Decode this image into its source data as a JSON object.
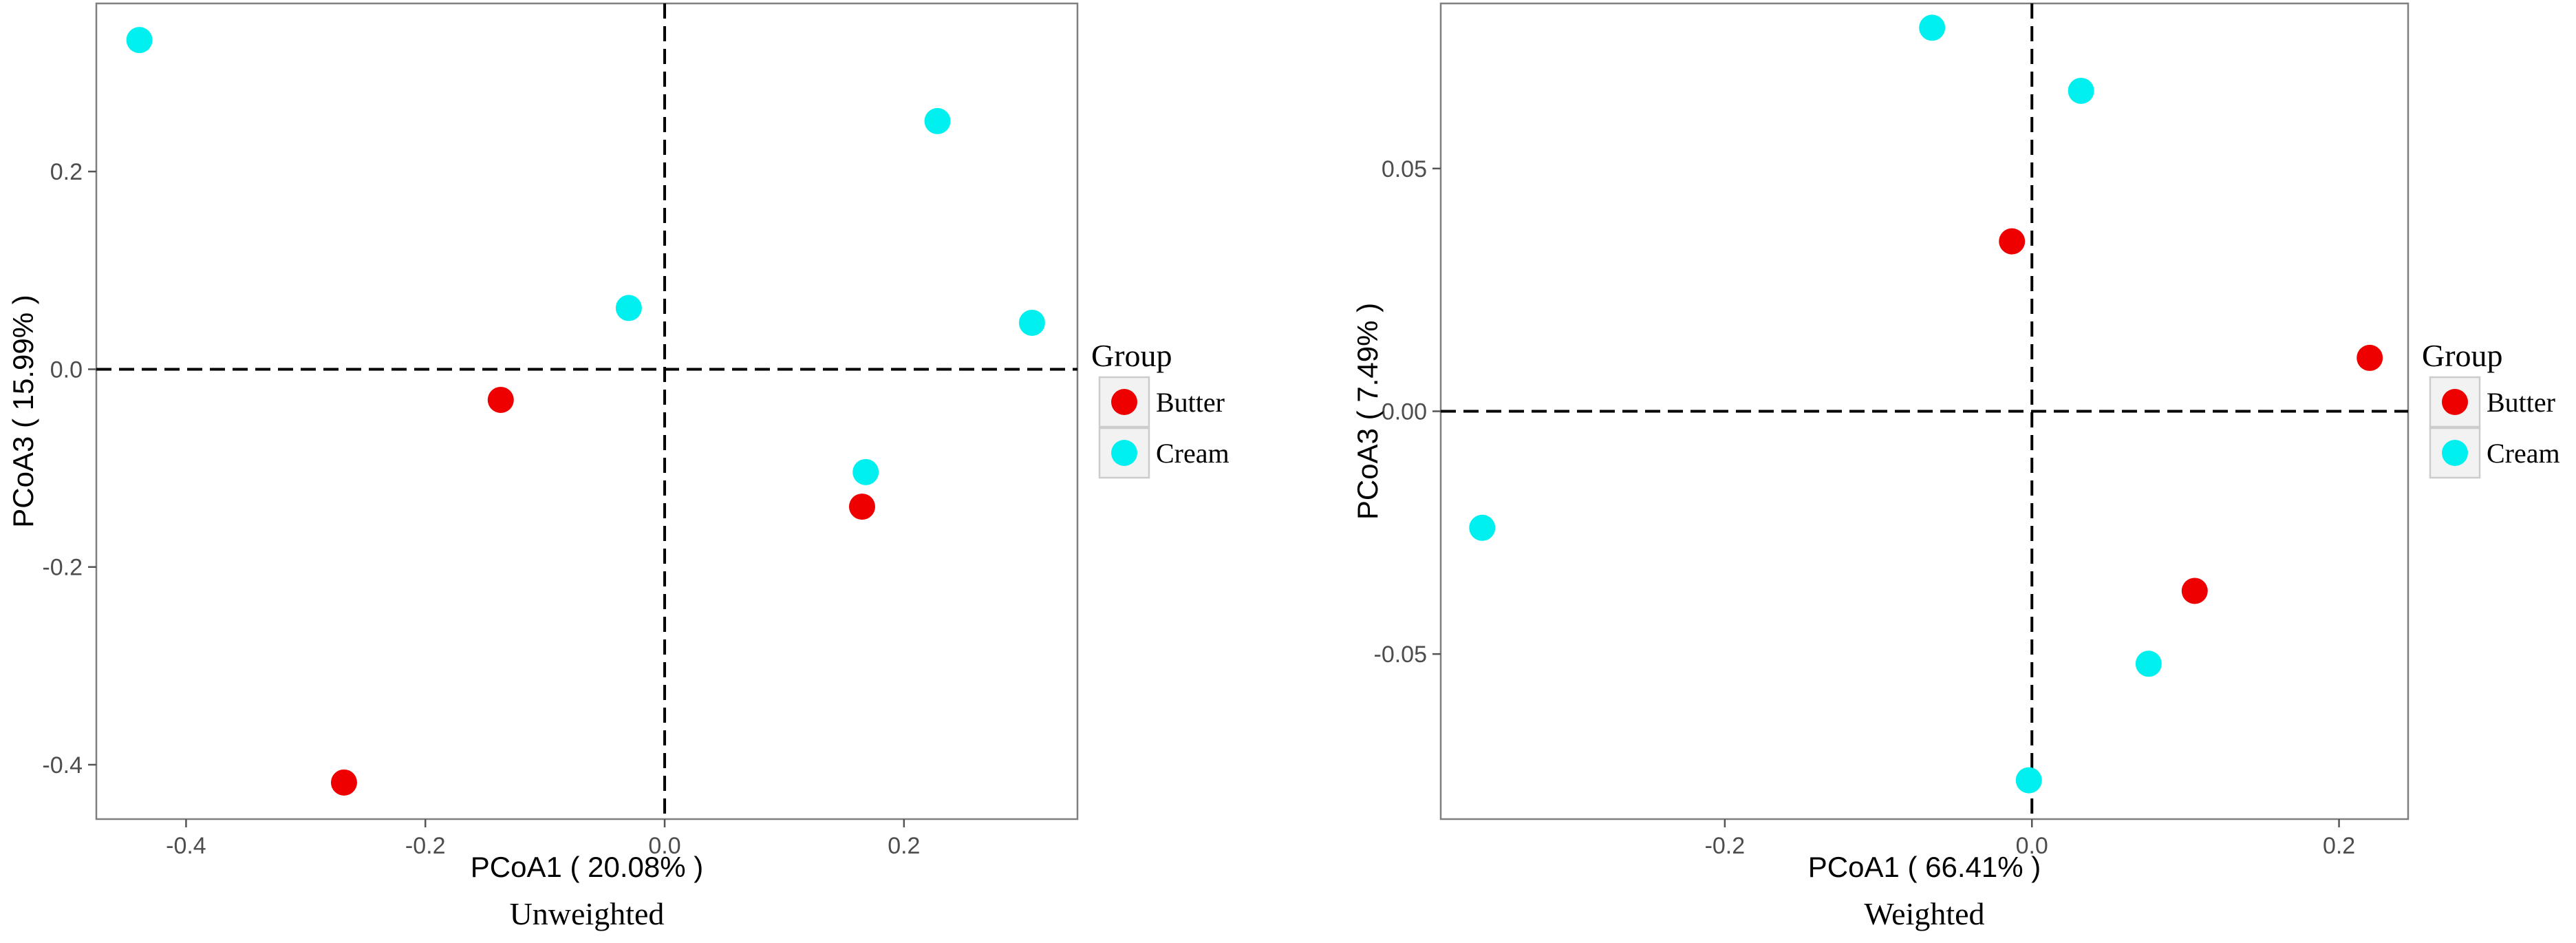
{
  "chart_data": [
    {
      "type": "scatter",
      "caption": "Unweighted",
      "xlabel": "PCoA1 ( 20.08% )",
      "ylabel": "PCoA3 ( 15.99% )",
      "xlim": [
        -0.475,
        0.345
      ],
      "ylim": [
        -0.455,
        0.37
      ],
      "xticks": [
        -0.4,
        -0.2,
        0.0,
        0.2
      ],
      "yticks": [
        -0.4,
        -0.2,
        0.0,
        0.2
      ],
      "xtick_labels": [
        "-0.4",
        "-0.2",
        "0.0",
        "0.2"
      ],
      "ytick_labels": [
        "-0.4",
        "-0.2",
        "0.0",
        "0.2"
      ],
      "reference_lines": {
        "x": 0,
        "y": 0,
        "style": "dashed"
      },
      "grid": false,
      "legend": {
        "title": "Group",
        "placement": "right"
      },
      "series": [
        {
          "name": "Butter",
          "color": "#ee0000",
          "points": [
            [
              -0.137,
              -0.031
            ],
            [
              0.165,
              -0.139
            ],
            [
              -0.268,
              -0.418
            ]
          ]
        },
        {
          "name": "Cream",
          "color": "#00f0f0",
          "points": [
            [
              -0.439,
              0.333
            ],
            [
              -0.03,
              0.062
            ],
            [
              0.228,
              0.251
            ],
            [
              0.307,
              0.047
            ],
            [
              0.168,
              -0.104
            ]
          ]
        }
      ]
    },
    {
      "type": "scatter",
      "caption": "Weighted",
      "xlabel": "PCoA1 ( 66.41% )",
      "ylabel": "PCoA3 ( 7.49% )",
      "xlim": [
        -0.385,
        0.245
      ],
      "ylim": [
        -0.084,
        0.084
      ],
      "xticks": [
        -0.2,
        0.0,
        0.2
      ],
      "yticks": [
        -0.05,
        0.0,
        0.05
      ],
      "xtick_labels": [
        "-0.2",
        "0.0",
        "0.2"
      ],
      "ytick_labels": [
        "-0.05",
        "0.00",
        "0.05"
      ],
      "reference_lines": {
        "x": 0,
        "y": 0,
        "style": "dashed"
      },
      "grid": false,
      "legend": {
        "title": "Group",
        "placement": "right"
      },
      "series": [
        {
          "name": "Butter",
          "color": "#ee0000",
          "points": [
            [
              -0.013,
              0.035
            ],
            [
              0.22,
              0.011
            ],
            [
              0.106,
              -0.037
            ]
          ]
        },
        {
          "name": "Cream",
          "color": "#00f0f0",
          "points": [
            [
              -0.065,
              0.079
            ],
            [
              0.032,
              0.066
            ],
            [
              -0.358,
              -0.024
            ],
            [
              0.076,
              -0.052
            ],
            [
              -0.002,
              -0.076
            ]
          ]
        }
      ]
    }
  ]
}
